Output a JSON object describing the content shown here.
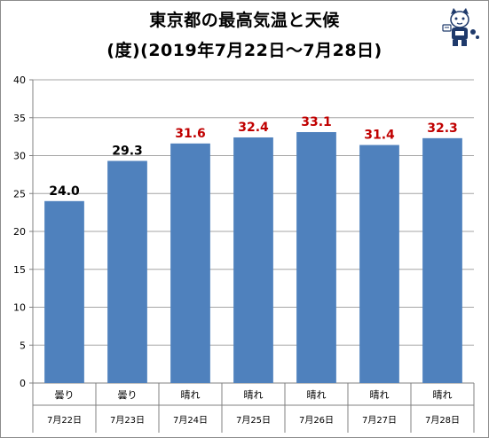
{
  "title_line1": "東京都の最高気温と天候",
  "title_line2": "(度)(2019年7月22日～7月28日)",
  "colors": {
    "bar": "#4f81bd",
    "label_normal": "#000000",
    "label_hot": "#c00000",
    "grid": "#a6a6a6",
    "axis": "#808080"
  },
  "chart_data": {
    "type": "bar",
    "title": "東京都の最高気温と天候",
    "subtitle": "(度)(2019年7月22日～7月28日)",
    "categories": [
      "7月22日",
      "7月23日",
      "7月24日",
      "7月25日",
      "7月26日",
      "7月27日",
      "7月28日"
    ],
    "weather": [
      "曇り",
      "曇り",
      "晴れ",
      "晴れ",
      "晴れ",
      "晴れ",
      "晴れ"
    ],
    "values": [
      24.0,
      29.3,
      31.6,
      32.4,
      33.1,
      31.4,
      32.3
    ],
    "value_labels": [
      "24.0",
      "29.3",
      "31.6",
      "32.4",
      "33.1",
      "31.4",
      "32.3"
    ],
    "label_colors": [
      "#000000",
      "#000000",
      "#c00000",
      "#c00000",
      "#c00000",
      "#c00000",
      "#c00000"
    ],
    "yticks": [
      0,
      5,
      10,
      15,
      20,
      25,
      30,
      35,
      40
    ],
    "ylim": [
      0,
      40
    ],
    "grid": true,
    "legend": "none"
  }
}
